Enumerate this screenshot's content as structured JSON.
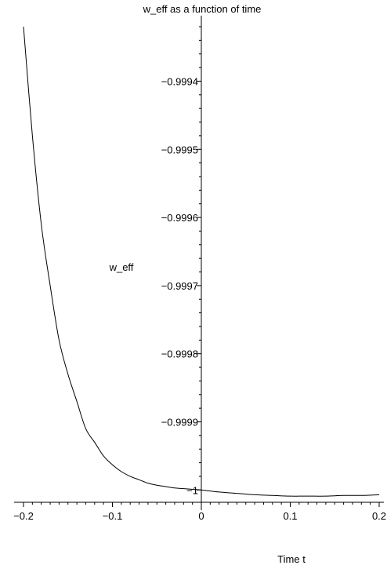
{
  "chart_data": {
    "type": "line",
    "title": "w_eff as a function of time",
    "xlabel": "Time t",
    "ylabel": "w_eff",
    "xlim": [
      -0.2,
      0.2
    ],
    "ylim": [
      -1.00001,
      -0.99932
    ],
    "grid": false,
    "x_ticks": [
      -0.2,
      -0.1,
      0,
      0.1,
      0.2
    ],
    "x_tick_labels": [
      "−0.2",
      "−0.1",
      "0",
      "0.1",
      "0.2"
    ],
    "y_ticks": [
      -1,
      -0.9999,
      -0.9998,
      -0.9997,
      -0.9996,
      -0.9995,
      -0.9994
    ],
    "y_tick_labels": [
      "−1",
      "−0.9999",
      "−0.9998",
      "−0.9997",
      "−0.9996",
      "−0.9995",
      "−0.9994"
    ],
    "series": [
      {
        "color": "#000000",
        "x": [
          -0.2,
          -0.19,
          -0.18,
          -0.17,
          -0.16,
          -0.15,
          -0.14,
          -0.13,
          -0.12,
          -0.11,
          -0.1,
          -0.09,
          -0.08,
          -0.07,
          -0.06,
          -0.05,
          -0.04,
          -0.03,
          -0.02,
          -0.01,
          0,
          0.02,
          0.04,
          0.06,
          0.08,
          0.1,
          0.12,
          0.14,
          0.16,
          0.18,
          0.2
        ],
        "y": [
          -0.99932,
          -0.99948,
          -0.99961,
          -0.9997,
          -0.99978,
          -0.99983,
          -0.99987,
          -0.99991,
          -0.99993,
          -0.99995,
          -0.999963,
          -0.999973,
          -0.99998,
          -0.999985,
          -0.99999,
          -0.999993,
          -0.999995,
          -0.999997,
          -0.999998,
          -0.999999,
          -1.0,
          -1.000003,
          -1.000005,
          -1.000007,
          -1.000008,
          -1.000009,
          -1.000009,
          -1.000009,
          -1.000008,
          -1.000008,
          -1.000007
        ]
      }
    ]
  }
}
